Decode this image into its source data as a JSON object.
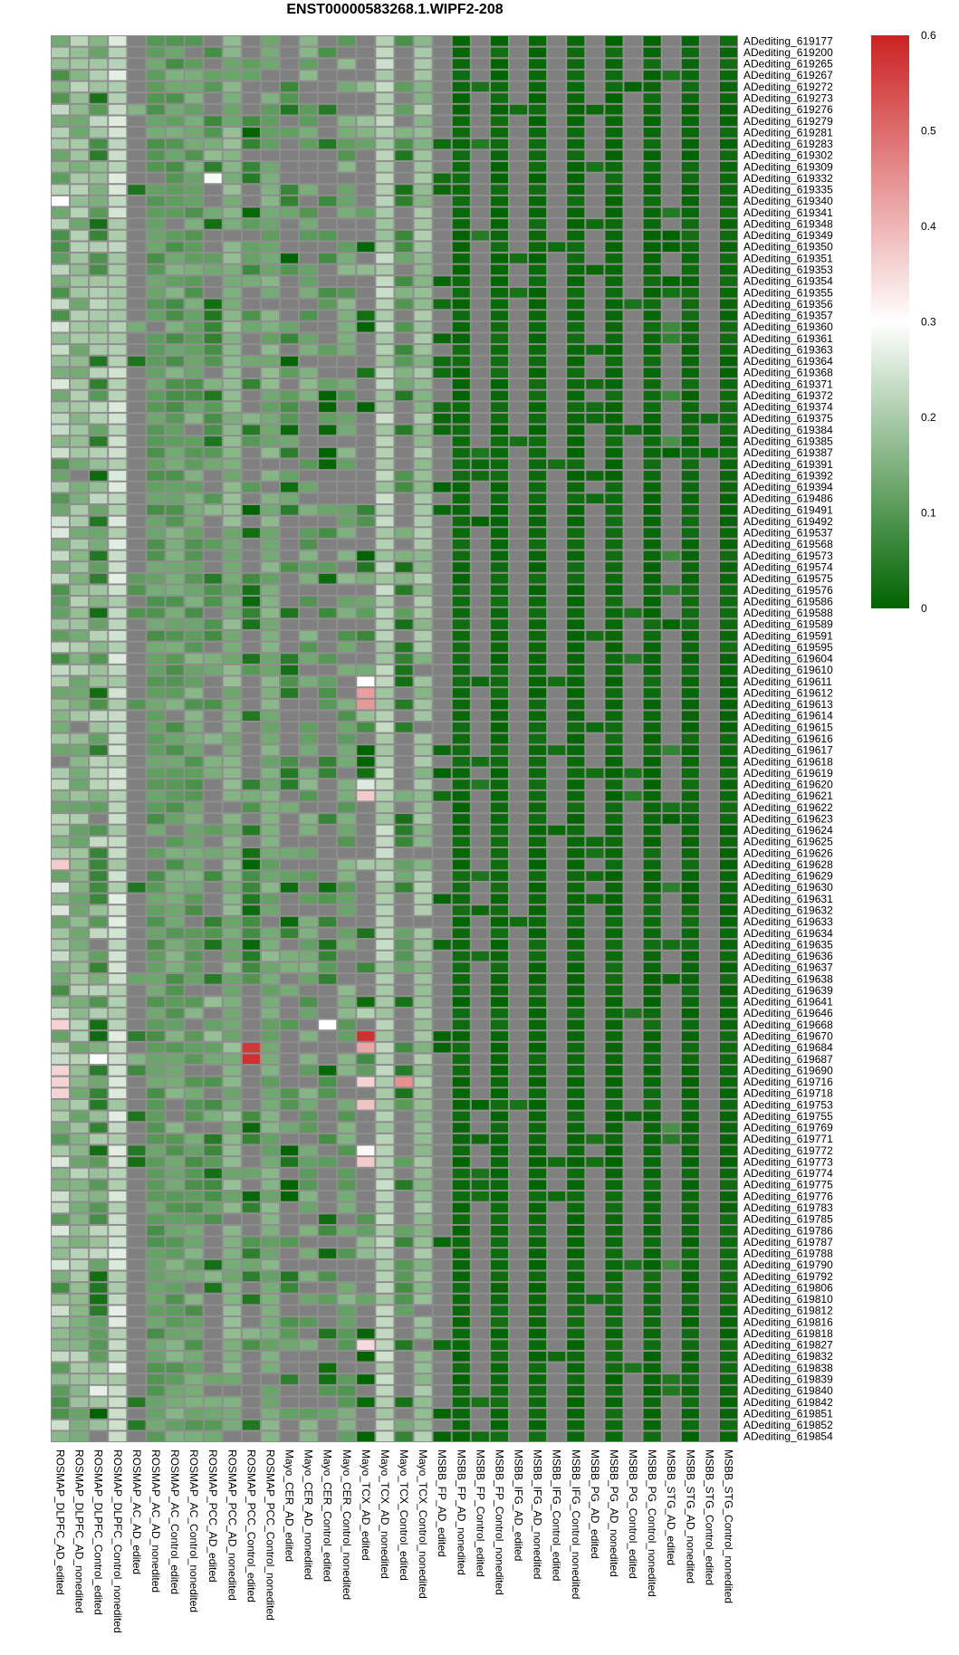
{
  "chart_data": {
    "type": "heatmap",
    "title": "ENST00000583268.1.WIPF2-208",
    "na_color": "#808080",
    "color_scale": {
      "min": 0,
      "max": 0.6,
      "colors": [
        "#006400",
        "#ffffff",
        "#cc2222"
      ],
      "mid": 0.3,
      "ticks": [
        "0",
        "0.1",
        "0.2",
        "0.3",
        "0.4",
        "0.5",
        "0.6"
      ]
    },
    "columns": [
      "ROSMAP_DLPFC_AD_edited",
      "ROSMAP_DLPFC_AD_nonedited",
      "ROSMAP_DLPFC_Control_edited",
      "ROSMAP_DLPFC_Control_nonedited",
      "ROSMAP_AC_AD_edited",
      "ROSMAP_AC_AD_nonedited",
      "ROSMAP_AC_Control_edited",
      "ROSMAP_AC_Control_nonedited",
      "ROSMAP_PCC_AD_edited",
      "ROSMAP_PCC_AD_nonedited",
      "ROSMAP_PCC_Control_edited",
      "ROSMAP_PCC_Control_nonedited",
      "Mayo_CER_AD_edited",
      "Mayo_CER_AD_nonedited",
      "Mayo_CER_Control_edited",
      "Mayo_CER_Control_nonedited",
      "Mayo_TCX_AD_edited",
      "Mayo_TCX_AD_nonedited",
      "Mayo_TCX_Control_edited",
      "Mayo_TCX_Control_nonedited",
      "MSBB_FP_AD_edited",
      "MSBB_FP_AD_nonedited",
      "MSBB_FP_Control_edited",
      "MSBB_FP_Control_nonedited",
      "MSBB_IFG_AD_edited",
      "MSBB_IFG_AD_nonedited",
      "MSBB_IFG_Control_edited",
      "MSBB_IFG_Control_nonedited",
      "MSBB_PG_AD_edited",
      "MSBB_PG_AD_nonedited",
      "MSBB_PG_Control_edited",
      "MSBB_PG_Control_nonedited",
      "MSBB_STG_AD_edited",
      "MSBB_STG_AD_nonedited",
      "MSBB_STG_Control_edited",
      "MSBB_STG_Control_nonedited"
    ],
    "rows": [
      "ADediting_619177",
      "ADediting_619200",
      "ADediting_619265",
      "ADediting_619267",
      "ADediting_619272",
      "ADediting_619273",
      "ADediting_619276",
      "ADediting_619279",
      "ADediting_619281",
      "ADediting_619283",
      "ADediting_619302",
      "ADediting_619309",
      "ADediting_619332",
      "ADediting_619335",
      "ADediting_619340",
      "ADediting_619341",
      "ADediting_619348",
      "ADediting_619349",
      "ADediting_619350",
      "ADediting_619351",
      "ADediting_619353",
      "ADediting_619354",
      "ADediting_619355",
      "ADediting_619356",
      "ADediting_619357",
      "ADediting_619360",
      "ADediting_619361",
      "ADediting_619363",
      "ADediting_619364",
      "ADediting_619368",
      "ADediting_619371",
      "ADediting_619372",
      "ADediting_619374",
      "ADediting_619375",
      "ADediting_619384",
      "ADediting_619385",
      "ADediting_619387",
      "ADediting_619391",
      "ADediting_619392",
      "ADediting_619394",
      "ADediting_619486",
      "ADediting_619491",
      "ADediting_619492",
      "ADediting_619537",
      "ADediting_619568",
      "ADediting_619573",
      "ADediting_619574",
      "ADediting_619575",
      "ADediting_619576",
      "ADediting_619586",
      "ADediting_619588",
      "ADediting_619589",
      "ADediting_619591",
      "ADediting_619595",
      "ADediting_619604",
      "ADediting_619610",
      "ADediting_619611",
      "ADediting_619612",
      "ADediting_619613",
      "ADediting_619614",
      "ADediting_619615",
      "ADediting_619616",
      "ADediting_619617",
      "ADediting_619618",
      "ADediting_619619",
      "ADediting_619620",
      "ADediting_619621",
      "ADediting_619622",
      "ADediting_619623",
      "ADediting_619624",
      "ADediting_619625",
      "ADediting_619626",
      "ADediting_619628",
      "ADediting_619629",
      "ADediting_619630",
      "ADediting_619631",
      "ADediting_619632",
      "ADediting_619633",
      "ADediting_619634",
      "ADediting_619635",
      "ADediting_619636",
      "ADediting_619637",
      "ADediting_619638",
      "ADediting_619639",
      "ADediting_619641",
      "ADediting_619646",
      "ADediting_619668",
      "ADediting_619670",
      "ADediting_619684",
      "ADediting_619687",
      "ADediting_619690",
      "ADediting_619716",
      "ADediting_619718",
      "ADediting_619753",
      "ADediting_619755",
      "ADediting_619769",
      "ADediting_619771",
      "ADediting_619772",
      "ADediting_619773",
      "ADediting_619774",
      "ADediting_619775",
      "ADediting_619776",
      "ADediting_619783",
      "ADediting_619785",
      "ADediting_619786",
      "ADediting_619787",
      "ADediting_619788",
      "ADediting_619790",
      "ADediting_619792",
      "ADediting_619806",
      "ADediting_619810",
      "ADediting_619812",
      "ADediting_619816",
      "ADediting_619818",
      "ADediting_619827",
      "ADediting_619832",
      "ADediting_619838",
      "ADediting_619839",
      "ADediting_619840",
      "ADediting_619842",
      "ADediting_619851",
      "ADediting_619852",
      "ADediting_619854"
    ],
    "column_profiles": [
      {
        "na": 0.02,
        "base": 0.17,
        "spread": 0.09
      },
      {
        "na": 0.02,
        "base": 0.17,
        "spread": 0.05
      },
      {
        "na": 0.05,
        "base": 0.12,
        "spread": 0.11
      },
      {
        "na": 0.0,
        "base": 0.23,
        "spread": 0.04
      },
      {
        "na": 0.85,
        "base": 0.09,
        "spread": 0.07
      },
      {
        "na": 0.05,
        "base": 0.11,
        "spread": 0.03
      },
      {
        "na": 0.05,
        "base": 0.12,
        "spread": 0.04
      },
      {
        "na": 0.05,
        "base": 0.12,
        "spread": 0.04
      },
      {
        "na": 0.35,
        "base": 0.1,
        "spread": 0.08
      },
      {
        "na": 0.05,
        "base": 0.15,
        "spread": 0.03
      },
      {
        "na": 0.45,
        "base": 0.08,
        "spread": 0.08
      },
      {
        "na": 0.05,
        "base": 0.14,
        "spread": 0.03
      },
      {
        "na": 0.55,
        "base": 0.07,
        "spread": 0.08
      },
      {
        "na": 0.4,
        "base": 0.13,
        "spread": 0.04
      },
      {
        "na": 0.55,
        "base": 0.06,
        "spread": 0.07
      },
      {
        "na": 0.35,
        "base": 0.13,
        "spread": 0.04
      },
      {
        "na": 0.6,
        "base": 0.1,
        "spread": 0.12
      },
      {
        "na": 0.0,
        "base": 0.21,
        "spread": 0.03
      },
      {
        "na": 0.55,
        "base": 0.09,
        "spread": 0.07
      },
      {
        "na": 0.05,
        "base": 0.18,
        "spread": 0.03
      },
      {
        "na": 0.8,
        "base": 0.01,
        "spread": 0.01
      },
      {
        "na": 0.0,
        "base": 0.01,
        "spread": 0.01
      },
      {
        "na": 0.9,
        "base": 0.03,
        "spread": 0.02
      },
      {
        "na": 0.0,
        "base": 0.01,
        "spread": 0.01
      },
      {
        "na": 0.95,
        "base": 0.02,
        "spread": 0.01
      },
      {
        "na": 0.0,
        "base": 0.01,
        "spread": 0.01
      },
      {
        "na": 0.95,
        "base": 0.02,
        "spread": 0.01
      },
      {
        "na": 0.0,
        "base": 0.01,
        "spread": 0.01
      },
      {
        "na": 0.75,
        "base": 0.02,
        "spread": 0.01
      },
      {
        "na": 0.0,
        "base": 0.01,
        "spread": 0.01
      },
      {
        "na": 0.9,
        "base": 0.03,
        "spread": 0.02
      },
      {
        "na": 0.0,
        "base": 0.01,
        "spread": 0.01
      },
      {
        "na": 0.8,
        "base": 0.04,
        "spread": 0.05
      },
      {
        "na": 0.0,
        "base": 0.01,
        "spread": 0.01
      },
      {
        "na": 0.95,
        "base": 0.02,
        "spread": 0.01
      },
      {
        "na": 0.0,
        "base": 0.01,
        "spread": 0.01
      }
    ],
    "highlights": [
      {
        "row": "ADediting_619611",
        "col": "Mayo_TCX_AD_edited",
        "value": 0.3
      },
      {
        "row": "ADediting_619612",
        "col": "Mayo_TCX_AD_edited",
        "value": 0.43
      },
      {
        "row": "ADediting_619613",
        "col": "Mayo_TCX_AD_edited",
        "value": 0.44
      },
      {
        "row": "ADediting_619620",
        "col": "Mayo_TCX_AD_edited",
        "value": 0.26
      },
      {
        "row": "ADediting_619621",
        "col": "Mayo_TCX_AD_edited",
        "value": 0.37
      },
      {
        "row": "ADediting_619668",
        "col": "Mayo_CER_Control_edited",
        "value": 0.3
      },
      {
        "row": "ADediting_619670",
        "col": "Mayo_TCX_AD_edited",
        "value": 0.58
      },
      {
        "row": "ADediting_619684",
        "col": "Mayo_TCX_AD_edited",
        "value": 0.42
      },
      {
        "row": "ADediting_619684",
        "col": "ROSMAP_PCC_Control_edited",
        "value": 0.57
      },
      {
        "row": "ADediting_619687",
        "col": "ROSMAP_PCC_Control_edited",
        "value": 0.58
      },
      {
        "row": "ADediting_619716",
        "col": "Mayo_TCX_Control_edited",
        "value": 0.45
      },
      {
        "row": "ADediting_619716",
        "col": "Mayo_TCX_AD_edited",
        "value": 0.36
      },
      {
        "row": "ADediting_619753",
        "col": "Mayo_TCX_AD_edited",
        "value": 0.38
      },
      {
        "row": "ADediting_619772",
        "col": "Mayo_TCX_AD_edited",
        "value": 0.31
      },
      {
        "row": "ADediting_619773",
        "col": "Mayo_TCX_AD_edited",
        "value": 0.37
      },
      {
        "row": "ADediting_619827",
        "col": "Mayo_TCX_AD_edited",
        "value": 0.35
      },
      {
        "row": "ADediting_619340",
        "col": "ROSMAP_DLPFC_AD_edited",
        "value": 0.3
      },
      {
        "row": "ADediting_619332",
        "col": "ROSMAP_PCC_AD_edited",
        "value": 0.29
      },
      {
        "row": "ADediting_619628",
        "col": "ROSMAP_DLPFC_AD_edited",
        "value": 0.37
      },
      {
        "row": "ADediting_619668",
        "col": "ROSMAP_DLPFC_AD_edited",
        "value": 0.36
      },
      {
        "row": "ADediting_619690",
        "col": "ROSMAP_DLPFC_AD_edited",
        "value": 0.36
      },
      {
        "row": "ADediting_619716",
        "col": "ROSMAP_DLPFC_AD_edited",
        "value": 0.36
      },
      {
        "row": "ADediting_619718",
        "col": "ROSMAP_DLPFC_AD_edited",
        "value": 0.36
      },
      {
        "row": "ADediting_619687",
        "col": "ROSMAP_DLPFC_Control_edited",
        "value": 0.3
      },
      {
        "row": "ADediting_619840",
        "col": "ROSMAP_DLPFC_Control_edited",
        "value": 0.27
      },
      {
        "row": "ADediting_619851",
        "col": "ROSMAP_DLPFC_Control_edited",
        "value": 0.0
      },
      {
        "row": "ADediting_619839",
        "col": "Mayo_TCX_AD_edited",
        "value": 0.0
      },
      {
        "row": "ADediting_619272",
        "col": "MSBB_PG_Control_edited",
        "value": 0.0
      },
      {
        "row": "ADediting_619492",
        "col": "MSBB_FP_Control_edited",
        "value": 0.0
      },
      {
        "row": "ADediting_619753",
        "col": "MSBB_FP_Control_edited",
        "value": 0.0
      }
    ]
  }
}
